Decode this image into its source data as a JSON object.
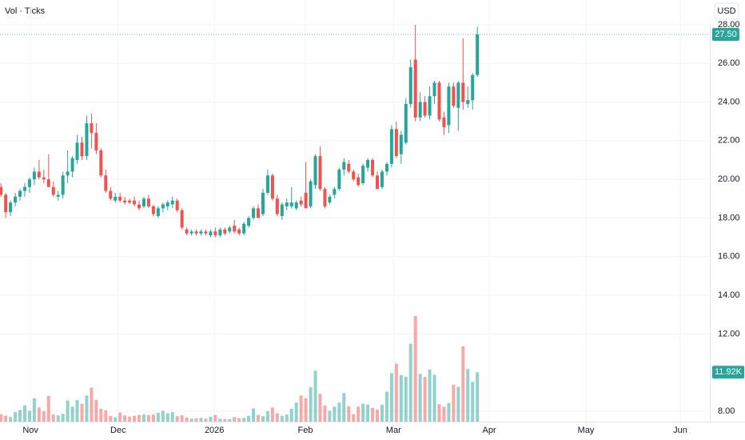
{
  "chart_data": {
    "type": "candlestick",
    "indicator": "Vol · Ticks",
    "currency": "USD",
    "open": [
      19.6,
      19.2,
      18.3,
      18.8,
      19.1,
      19.4,
      19.6,
      20.0,
      20.4,
      20.1,
      20.0,
      19.6,
      19.1,
      19.2,
      20.2,
      20.4,
      21.0,
      21.9,
      21.2,
      22.9,
      22.4,
      21.5,
      20.2,
      19.4,
      18.9,
      19.1,
      18.9,
      18.9,
      18.9,
      18.7,
      18.6,
      19.0,
      18.6,
      18.1,
      18.5,
      18.6,
      18.7,
      18.9,
      18.4,
      17.4,
      17.2,
      17.3,
      17.2,
      17.3,
      17.1,
      17.3,
      17.1,
      17.4,
      17.3,
      17.6,
      17.4,
      17.2,
      17.6,
      18.0,
      18.5,
      18.2,
      19.3,
      20.2,
      19.0,
      18.1,
      18.6,
      18.6,
      18.5,
      18.9,
      19.3,
      18.6,
      19.7,
      21.2,
      19.5,
      18.8,
      19.2,
      19.5,
      20.5,
      20.8,
      20.4,
      20.1,
      19.8,
      20.6,
      21.0,
      20.2,
      19.6,
      20.4,
      20.8,
      22.6,
      21.3,
      21.9,
      23.9,
      26.2,
      23.2,
      24.0,
      23.3,
      24.3,
      25.0,
      23.2,
      22.8,
      24.8,
      23.7,
      25.0,
      23.9,
      24.1,
      25.4
    ],
    "high": [
      19.8,
      19.3,
      18.9,
      19.3,
      19.5,
      19.8,
      20.1,
      20.6,
      21.0,
      20.5,
      21.3,
      19.9,
      19.4,
      20.4,
      21.5,
      21.2,
      22.3,
      22.2,
      23.3,
      23.4,
      22.9,
      21.6,
      20.5,
      19.6,
      19.3,
      19.3,
      19.1,
      19.0,
      19.1,
      18.9,
      19.1,
      19.2,
      18.7,
      18.6,
      18.8,
      18.9,
      19.1,
      19.0,
      18.5,
      17.5,
      17.4,
      17.4,
      17.4,
      17.4,
      17.4,
      17.5,
      17.5,
      17.5,
      17.6,
      17.9,
      17.5,
      17.8,
      18.1,
      18.6,
      18.7,
      19.5,
      20.5,
      20.3,
      19.2,
      18.8,
      19.0,
      19.6,
      18.9,
      19.1,
      20.9,
      20.0,
      21.3,
      21.7,
      19.6,
      19.2,
      19.6,
      20.6,
      21.1,
      21.0,
      20.5,
      20.3,
      20.8,
      21.1,
      21.1,
      20.4,
      20.5,
      20.9,
      22.8,
      23.0,
      22.5,
      24.2,
      26.2,
      28.0,
      24.5,
      24.3,
      24.8,
      25.1,
      25.1,
      23.5,
      25.0,
      25.0,
      25.1,
      27.3,
      24.8,
      25.5,
      27.9
    ],
    "low": [
      19.1,
      18.0,
      18.1,
      18.6,
      18.9,
      19.1,
      19.3,
      19.7,
      20.0,
      19.8,
      19.7,
      19.1,
      18.9,
      19.0,
      19.8,
      20.1,
      20.8,
      21.0,
      21.0,
      21.6,
      21.3,
      20.1,
      19.3,
      18.9,
      18.8,
      18.8,
      18.7,
      18.7,
      18.6,
      18.4,
      18.5,
      18.5,
      18.1,
      18.0,
      18.3,
      18.4,
      18.5,
      18.3,
      17.4,
      17.1,
      17.1,
      17.1,
      17.1,
      17.1,
      17.0,
      17.0,
      17.0,
      17.1,
      17.2,
      17.2,
      17.1,
      17.1,
      17.5,
      17.9,
      18.0,
      18.1,
      19.2,
      18.9,
      18.1,
      17.9,
      18.4,
      18.5,
      18.4,
      18.6,
      18.6,
      18.5,
      19.5,
      19.4,
      18.5,
      18.7,
      19.0,
      19.4,
      20.2,
      20.3,
      19.9,
      19.6,
      19.7,
      20.4,
      20.1,
      19.5,
      19.5,
      20.2,
      20.6,
      21.1,
      20.8,
      21.8,
      23.7,
      23.0,
      23.0,
      23.2,
      23.1,
      23.9,
      23.0,
      22.3,
      22.4,
      23.7,
      22.5,
      23.6,
      23.7,
      23.6,
      25.3
    ],
    "close": [
      19.2,
      18.3,
      18.8,
      19.1,
      19.4,
      19.6,
      20.0,
      20.4,
      20.1,
      20.0,
      19.6,
      19.2,
      19.2,
      20.2,
      20.4,
      21.1,
      21.9,
      21.2,
      22.9,
      22.4,
      21.5,
      20.2,
      19.4,
      19.0,
      19.1,
      18.9,
      18.8,
      18.8,
      18.7,
      18.5,
      19.0,
      18.6,
      18.2,
      18.5,
      18.7,
      18.8,
      18.9,
      18.4,
      17.5,
      17.2,
      17.3,
      17.2,
      17.3,
      17.2,
      17.3,
      17.1,
      17.4,
      17.2,
      17.5,
      17.3,
      17.2,
      17.7,
      18.0,
      18.5,
      18.0,
      19.3,
      20.2,
      19.0,
      18.2,
      18.7,
      18.8,
      18.8,
      18.8,
      18.7,
      18.5,
      19.9,
      21.2,
      19.5,
      18.6,
      19.1,
      19.5,
      20.5,
      20.9,
      20.4,
      20.0,
      19.7,
      20.7,
      21.0,
      20.2,
      19.5,
      20.4,
      20.8,
      22.6,
      21.2,
      22.3,
      23.9,
      25.8,
      23.2,
      24.0,
      23.3,
      24.3,
      25.0,
      23.1,
      22.7,
      24.8,
      23.8,
      25.0,
      24.0,
      24.1,
      25.4,
      27.5
    ],
    "volume": [
      1800,
      1400,
      1100,
      2300,
      2800,
      3900,
      2600,
      5600,
      3400,
      2500,
      6200,
      1700,
      1500,
      1900,
      5100,
      3600,
      5200,
      4300,
      6300,
      8200,
      5200,
      3100,
      2700,
      1400,
      1000,
      2200,
      1500,
      1200,
      1400,
      1600,
      1700,
      1600,
      1700,
      2100,
      2600,
      2000,
      2300,
      1300,
      1500,
      1000,
      700,
      800,
      900,
      700,
      1200,
      1600,
      700,
      600,
      600,
      1100,
      800,
      900,
      1400,
      3200,
      1600,
      1300,
      2500,
      3400,
      2000,
      1400,
      1700,
      3100,
      4600,
      6300,
      5600,
      8300,
      12300,
      6700,
      3900,
      2600,
      3600,
      4600,
      6900,
      3700,
      1800,
      3600,
      4300,
      4100,
      3300,
      2900,
      4100,
      7200,
      11700,
      14000,
      11200,
      10800,
      18800,
      25500,
      11500,
      10800,
      12600,
      11300,
      4200,
      3600,
      4500,
      8900,
      8400,
      18200,
      12700,
      9600,
      11920
    ],
    "up_color": "#26a69a",
    "down_color": "#ef5350",
    "price_tag": {
      "value": 27.5,
      "label": "27.50"
    },
    "volume_tag": {
      "value": 11920,
      "label": "11.92K"
    },
    "ylim": [
      7.46,
      29.28
    ],
    "yticks": [
      {
        "value": 8,
        "label": "8.00"
      },
      {
        "value": 12,
        "label": "12.00"
      },
      {
        "value": 14,
        "label": "14.00"
      },
      {
        "value": 16,
        "label": "16.00"
      },
      {
        "value": 18,
        "label": "18.00"
      },
      {
        "value": 20,
        "label": "20.00"
      },
      {
        "value": 22,
        "label": "22.00"
      },
      {
        "value": 24,
        "label": "24.00"
      },
      {
        "value": 26,
        "label": "26.00"
      },
      {
        "value": 28,
        "label": "28.00"
      }
    ],
    "xlim": [
      -0.2,
      148.8
    ],
    "xticks": [
      {
        "value": 6.2,
        "label": "Nov"
      },
      {
        "value": 24.6,
        "label": "Dec"
      },
      {
        "value": 44.8,
        "label": "2026"
      },
      {
        "value": 63.9,
        "label": "Feb"
      },
      {
        "value": 82.4,
        "label": "Mar"
      },
      {
        "value": 102.5,
        "label": "Apr"
      },
      {
        "value": 122.8,
        "label": "May"
      },
      {
        "value": 142.6,
        "label": "Jun"
      }
    ],
    "grid": true
  }
}
